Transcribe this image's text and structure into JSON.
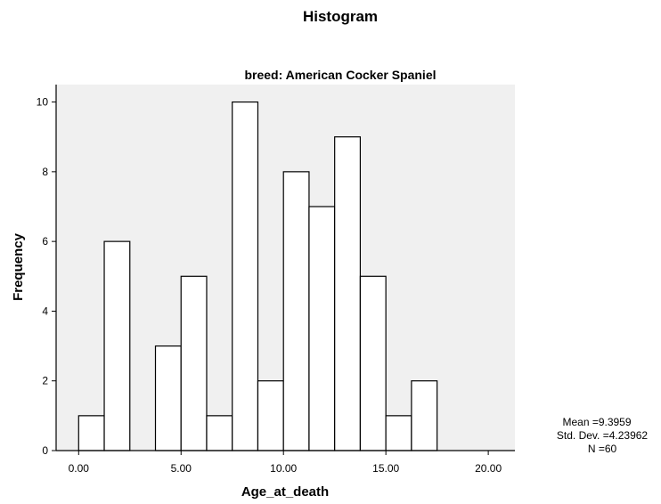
{
  "chart_data": {
    "type": "bar",
    "title": "Histogram",
    "subtitle": "breed: American Cocker Spaniel",
    "xlabel": "Age_at_death",
    "ylabel": "Frequency",
    "bin_width": 1.25,
    "bins": [
      {
        "start": 0.0,
        "end": 1.25,
        "value": 1
      },
      {
        "start": 1.25,
        "end": 2.5,
        "value": 6
      },
      {
        "start": 2.5,
        "end": 3.75,
        "value": 0
      },
      {
        "start": 3.75,
        "end": 5.0,
        "value": 3
      },
      {
        "start": 5.0,
        "end": 6.25,
        "value": 5
      },
      {
        "start": 6.25,
        "end": 7.5,
        "value": 1
      },
      {
        "start": 7.5,
        "end": 8.75,
        "value": 10
      },
      {
        "start": 8.75,
        "end": 10.0,
        "value": 2
      },
      {
        "start": 10.0,
        "end": 11.25,
        "value": 8
      },
      {
        "start": 11.25,
        "end": 12.5,
        "value": 7
      },
      {
        "start": 12.5,
        "end": 13.75,
        "value": 9
      },
      {
        "start": 13.75,
        "end": 15.0,
        "value": 5
      },
      {
        "start": 15.0,
        "end": 16.25,
        "value": 1
      },
      {
        "start": 16.25,
        "end": 17.5,
        "value": 2
      }
    ],
    "xlim": [
      -1.1,
      21.3
    ],
    "ylim": [
      0,
      10.5
    ],
    "xticks": [
      0,
      5,
      10,
      15,
      20
    ],
    "xtick_labels": [
      "0.00",
      "5.00",
      "10.00",
      "15.00",
      "20.00"
    ],
    "yticks": [
      0,
      2,
      4,
      6,
      8,
      10
    ],
    "ytick_labels": [
      "0",
      "2",
      "4",
      "6",
      "8",
      "10"
    ],
    "grid": false,
    "plot_background": "#f0f0f0",
    "bar_fill": "#ffffff",
    "bar_stroke": "#000000",
    "stats": {
      "mean": "Mean =9.3959",
      "std_dev": "Std. Dev. =4.23962",
      "n": "N =60"
    }
  }
}
